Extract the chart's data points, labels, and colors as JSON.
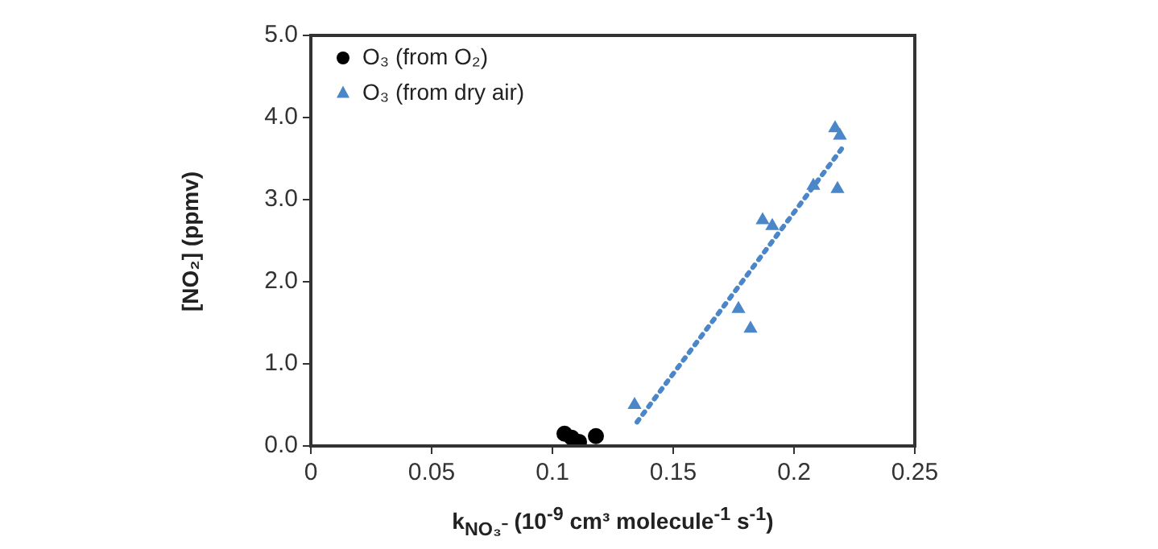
{
  "chart_data": {
    "type": "scatter",
    "xlabel": "k$_{NO₃⁻}$ (10$^{-9}$ cm³ molecule$^{-1}$ s$^{-1}$)",
    "ylabel": "[NO₂] (ppmv)",
    "xlim": [
      0,
      0.25
    ],
    "xticks": [
      0,
      0.05,
      0.1,
      0.15,
      0.2,
      0.25
    ],
    "ylim": [
      0,
      5
    ],
    "yticks": [
      {
        "value": 0,
        "label": "0.0"
      },
      {
        "value": 1,
        "label": "1.0"
      },
      {
        "value": 2,
        "label": "2.0"
      },
      {
        "value": 3,
        "label": "3.0"
      },
      {
        "value": 4,
        "label": "4.0"
      },
      {
        "value": 5,
        "label": "5.0"
      }
    ],
    "grid": false,
    "legend": "top left",
    "series": [
      {
        "name": "O₃ (from O₂)",
        "color": "#000000",
        "marker": "circle",
        "x": [
          0.105,
          0.108,
          0.111,
          0.118
        ],
        "values": [
          0.15,
          0.1,
          0.05,
          0.12
        ]
      },
      {
        "name": "O₃ (from dry air)",
        "color": "#4a86c8",
        "marker": "triangle",
        "x": [
          0.134,
          0.177,
          0.182,
          0.187,
          0.191,
          0.208,
          0.218,
          0.217,
          0.219
        ],
        "values": [
          0.5,
          1.67,
          1.43,
          2.75,
          2.68,
          3.17,
          3.13,
          3.87,
          3.78
        ]
      },
      {
        "type": "line",
        "color": "#4a86c8",
        "marker": "none",
        "line_style": "dotted",
        "x": [
          0.135,
          0.22
        ],
        "values": [
          0.29,
          3.63
        ]
      }
    ]
  }
}
